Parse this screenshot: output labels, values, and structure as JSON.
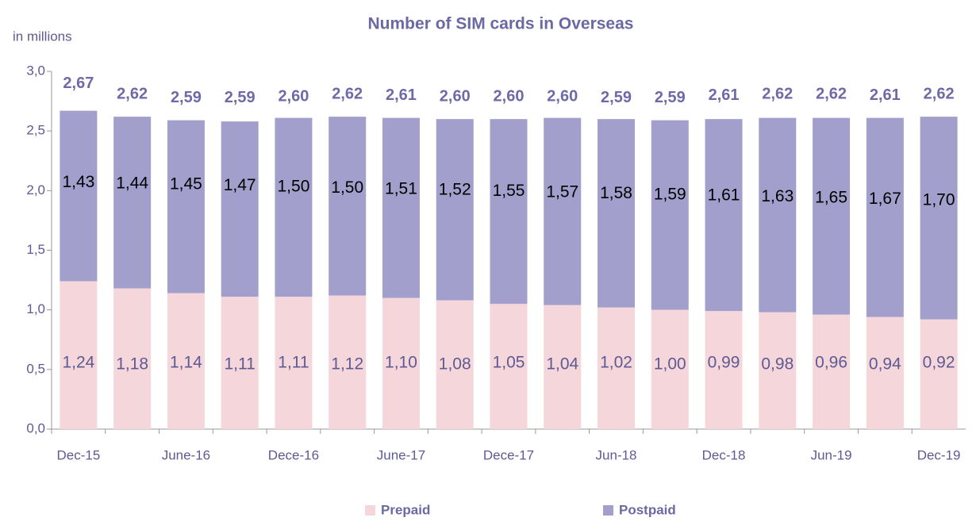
{
  "chart_data": {
    "type": "stacked_bar",
    "title": "Number of SIM cards in Overseas",
    "y_label": "in millions",
    "categories": [
      "Dec-15",
      null,
      "June-16",
      null,
      "Dece-16",
      null,
      "June-17",
      null,
      "Dece-17",
      null,
      "Jun-18",
      null,
      "Dec-18",
      null,
      "Jun-19",
      null,
      "Dec-19"
    ],
    "series": [
      {
        "name": "Prepaid",
        "color": "#f5d6da",
        "label_color": "#5e5a94",
        "values": [
          1.24,
          1.18,
          1.14,
          1.11,
          1.11,
          1.12,
          1.1,
          1.08,
          1.05,
          1.04,
          1.02,
          1.0,
          0.99,
          0.98,
          0.96,
          0.94,
          0.92
        ],
        "value_labels": [
          "1,24",
          "1,18",
          "1,14",
          "1,11",
          "1,11",
          "1,12",
          "1,10",
          "1,08",
          "1,05",
          "1,04",
          "1,02",
          "1,00",
          "0,99",
          "0,98",
          "0,96",
          "0,94",
          "0,92"
        ]
      },
      {
        "name": "Postpaid",
        "color": "#a29fcc",
        "label_color": "#000000",
        "values": [
          1.43,
          1.44,
          1.45,
          1.47,
          1.5,
          1.5,
          1.51,
          1.52,
          1.55,
          1.57,
          1.58,
          1.59,
          1.61,
          1.63,
          1.65,
          1.67,
          1.7
        ],
        "value_labels": [
          "1,43",
          "1,44",
          "1,45",
          "1,47",
          "1,50",
          "1,50",
          "1,51",
          "1,52",
          "1,55",
          "1,57",
          "1,58",
          "1,59",
          "1,61",
          "1,63",
          "1,65",
          "1,67",
          "1,70"
        ]
      }
    ],
    "totals": [
      2.67,
      2.62,
      2.59,
      2.59,
      2.6,
      2.62,
      2.61,
      2.6,
      2.6,
      2.6,
      2.59,
      2.59,
      2.61,
      2.62,
      2.62,
      2.61,
      2.62
    ],
    "total_labels": [
      "2,67",
      "2,62",
      "2,59",
      "2,59",
      "2,60",
      "2,62",
      "2,61",
      "2,60",
      "2,60",
      "2,60",
      "2,59",
      "2,59",
      "2,61",
      "2,62",
      "2,62",
      "2,61",
      "2,62"
    ],
    "ylim": [
      0,
      3
    ],
    "yticks": [
      {
        "value": 0,
        "label": "0,0"
      },
      {
        "value": 0.5,
        "label": "0,5"
      },
      {
        "value": 1,
        "label": "1,0"
      },
      {
        "value": 1.5,
        "label": "1,5"
      },
      {
        "value": 2,
        "label": "2,0"
      },
      {
        "value": 2.5,
        "label": "2,5"
      },
      {
        "value": 3,
        "label": "3,0"
      }
    ],
    "grid": false
  }
}
